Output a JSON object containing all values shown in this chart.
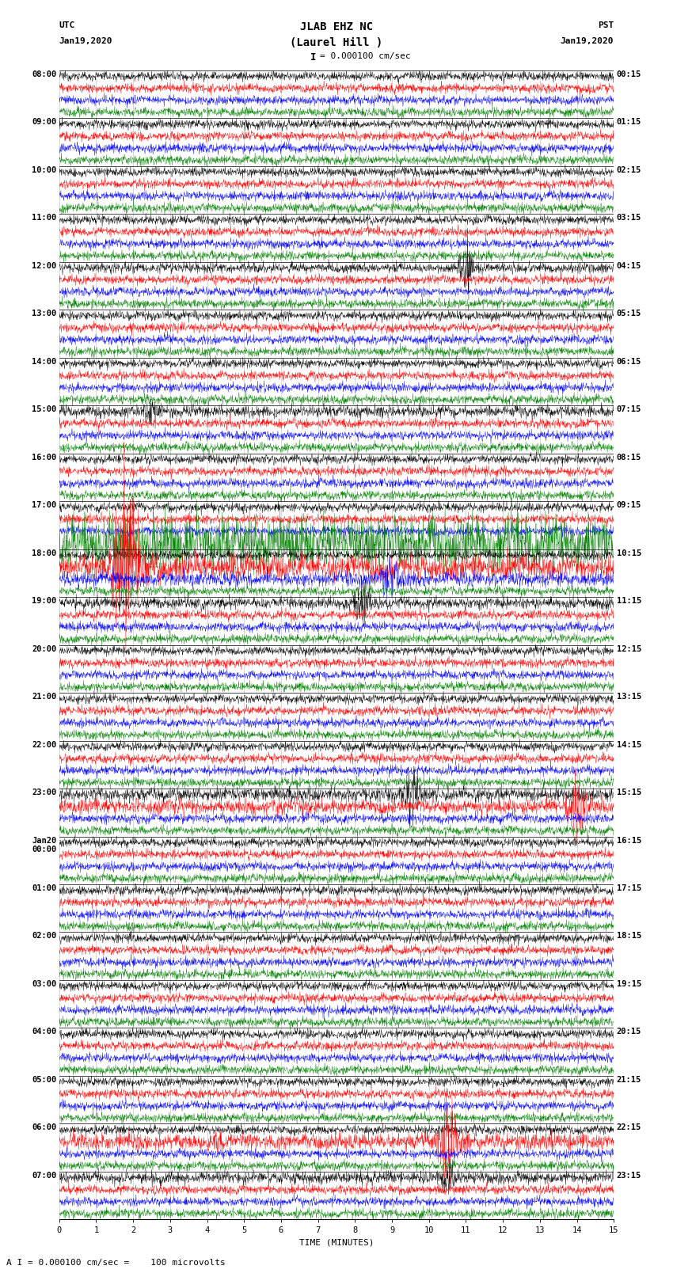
{
  "title_line1": "JLAB EHZ NC",
  "title_line2": "(Laurel Hill )",
  "scale_text": "I = 0.000100 cm/sec",
  "footer_text": "A I = 0.000100 cm/sec =    100 microvolts",
  "utc_label": "UTC",
  "utc_date": "Jan19,2020",
  "pst_label": "PST",
  "pst_date": "Jan19,2020",
  "xlabel": "TIME (MINUTES)",
  "left_times": [
    "08:00",
    "09:00",
    "10:00",
    "11:00",
    "12:00",
    "13:00",
    "14:00",
    "15:00",
    "16:00",
    "17:00",
    "18:00",
    "19:00",
    "20:00",
    "21:00",
    "22:00",
    "23:00",
    "Jan20\n00:00",
    "01:00",
    "02:00",
    "03:00",
    "04:00",
    "05:00",
    "06:00",
    "07:00"
  ],
  "right_times": [
    "00:15",
    "01:15",
    "02:15",
    "03:15",
    "04:15",
    "05:15",
    "06:15",
    "07:15",
    "08:15",
    "09:15",
    "10:15",
    "11:15",
    "12:15",
    "13:15",
    "14:15",
    "15:15",
    "16:15",
    "17:15",
    "18:15",
    "19:15",
    "20:15",
    "21:15",
    "22:15",
    "23:15"
  ],
  "n_rows": 24,
  "n_traces_per_row": 4,
  "colors": [
    "black",
    "red",
    "blue",
    "green"
  ],
  "bg_color": "#ffffff",
  "noise_seed": 12345,
  "xmin": 0,
  "xmax": 15,
  "xticks": [
    0,
    1,
    2,
    3,
    4,
    5,
    6,
    7,
    8,
    9,
    10,
    11,
    12,
    13,
    14,
    15
  ],
  "title_fontsize": 10,
  "label_fontsize": 8,
  "tick_fontsize": 7.5
}
